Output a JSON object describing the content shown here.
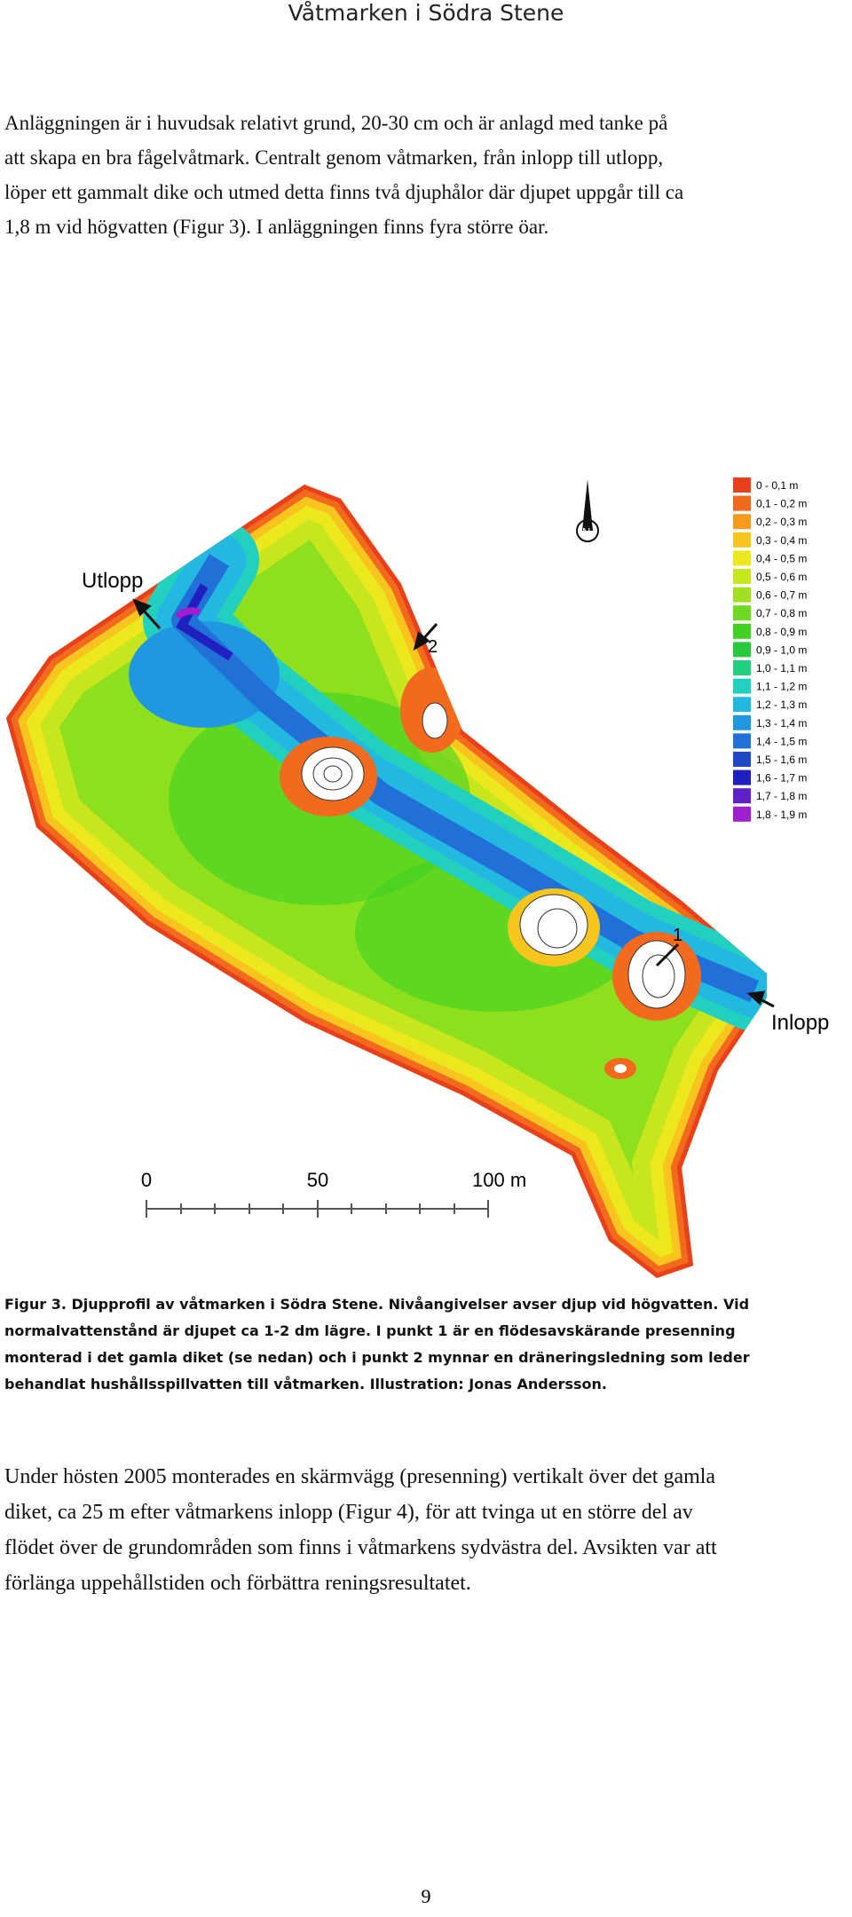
{
  "header": {
    "title": "Våtmarken i Södra Stene"
  },
  "paragraph_1": {
    "lines": [
      "Anläggningen är i huvudsak relativt grund, 20-30 cm och är anlagd med tanke på",
      "att skapa en bra fågelvåtmark. Centralt genom våtmarken, från inlopp till utlopp,",
      "löper ett gammalt dike och utmed detta finns två djuphålor där djupet uppgår till ca",
      "1,8 m vid högvatten (Figur 3). I anläggningen finns fyra större öar."
    ]
  },
  "figure": {
    "labels": {
      "outlet": "Utlopp",
      "inlet": "Inlopp",
      "point_1": "1",
      "point_2": "2",
      "north": "N"
    },
    "scale_bar": [
      "0",
      "50",
      "100 m"
    ],
    "legend": [
      {
        "label": "0 - 0,1 m",
        "color": "#e8401c"
      },
      {
        "label": "0,1 - 0,2 m",
        "color": "#f26a1e"
      },
      {
        "label": "0,2 - 0,3 m",
        "color": "#f79a1e"
      },
      {
        "label": "0,3 - 0,4 m",
        "color": "#f8c41e"
      },
      {
        "label": "0,4 - 0,5 m",
        "color": "#ece81e"
      },
      {
        "label": "0,5 - 0,6 m",
        "color": "#c8e61e"
      },
      {
        "label": "0,6 - 0,7 m",
        "color": "#a0e01e"
      },
      {
        "label": "0,7 - 0,8 m",
        "color": "#70d820"
      },
      {
        "label": "0,8 - 0,9 m",
        "color": "#40d022"
      },
      {
        "label": "0,9 - 1,0 m",
        "color": "#28c83c"
      },
      {
        "label": "1,0 - 1,1 m",
        "color": "#22d080"
      },
      {
        "label": "1,1 - 1,2 m",
        "color": "#22d0c0"
      },
      {
        "label": "1,2 - 1,3 m",
        "color": "#22b8e0"
      },
      {
        "label": "1,3 - 1,4 m",
        "color": "#2098e0"
      },
      {
        "label": "1,4 - 1,5 m",
        "color": "#2070d8"
      },
      {
        "label": "1,5 - 1,6 m",
        "color": "#2048c8"
      },
      {
        "label": "1,6 - 1,7 m",
        "color": "#2020c0"
      },
      {
        "label": "1,7 - 1,8 m",
        "color": "#6020c8"
      },
      {
        "label": "1,8 - 1,9 m",
        "color": "#a020d0"
      }
    ],
    "caption": {
      "lines": [
        "Figur 3. Djupprofil av våtmarken i Södra Stene. Nivåangivelser avser djup vid högvatten. Vid",
        "normalvattenstånd är djupet ca 1-2 dm lägre. I punkt 1 är en flödesavskärande presenning",
        "monterad i det gamla diket (se nedan) och i punkt 2 mynnar en dräneringsledning som leder",
        "behandlat hushållsspillvatten till våtmarken. Illustration: Jonas Andersson."
      ]
    }
  },
  "paragraph_2": {
    "lines": [
      "Under hösten 2005 monterades en skärmvägg (presenning) vertikalt över det gamla",
      "diket, ca 25 m efter våtmarkens inlopp (Figur 4), för att tvinga ut en större del av",
      "flödet över de grundområden som finns i våtmarkens sydvästra del. Avsikten var att",
      "förlänga uppehållstiden och förbättra reningsresultatet."
    ]
  },
  "footer": {
    "page_number": "9"
  }
}
